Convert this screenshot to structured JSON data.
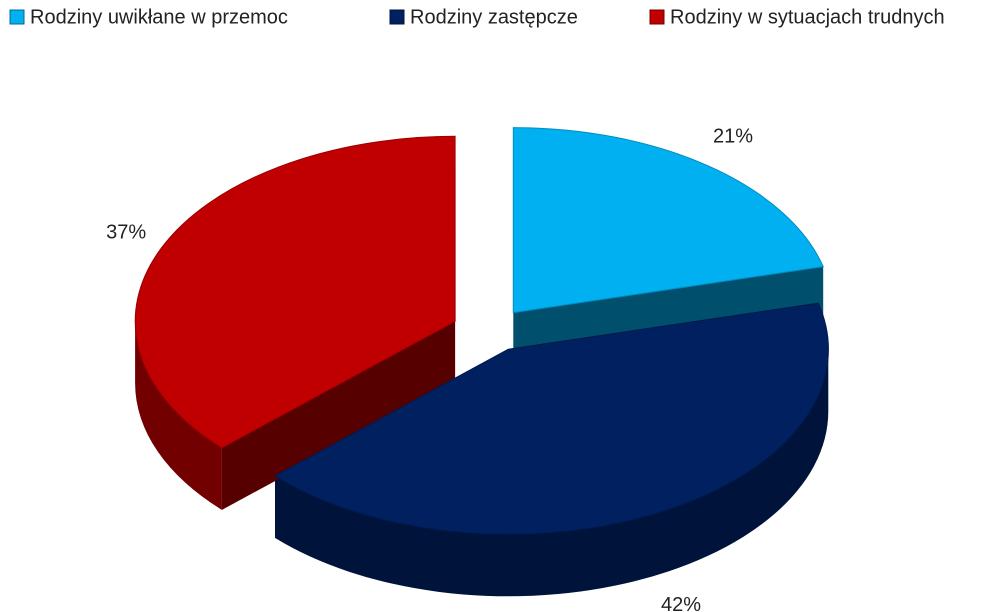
{
  "chart_data": {
    "type": "pie",
    "categories": [
      "Rodziny uwikłane w przemoc",
      "Rodziny zastępcze",
      "Rodziny w sytuacjach trudnych"
    ],
    "values": [
      21,
      42,
      37
    ],
    "value_labels": [
      "21%",
      "42%",
      "37%"
    ],
    "colors": [
      "#00b0f0",
      "#002060",
      "#c00000"
    ],
    "legend": "top"
  }
}
